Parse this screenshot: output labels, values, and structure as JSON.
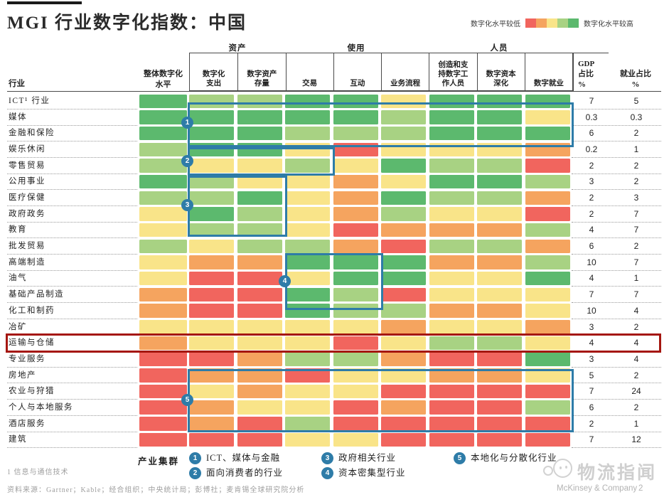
{
  "title": "MGI 行业数字化指数：中国",
  "color_legend": {
    "low_label": "数字化水平较低",
    "high_label": "数字化水平较高",
    "scale_colors": [
      "#f1655e",
      "#f5a45f",
      "#f9e489",
      "#a8d283",
      "#5cb96e"
    ]
  },
  "header": {
    "industry_label": "行业",
    "overall": "整体数字化\n水平",
    "groups": [
      "资产",
      "使用",
      "人员"
    ],
    "columns": [
      "数字化\n支出",
      "数字资产\n存量",
      "交易",
      "互动",
      "业务流程",
      "创造和支\n持数字工\n作人员",
      "数字资本\n深化",
      "数字就业"
    ],
    "gdp": "GDP\n占比\n%",
    "employment": "就业占比\n%"
  },
  "chart_data": {
    "type": "heatmap",
    "title": "MGI 行业数字化指数：中国",
    "row_header": "行业",
    "columns": [
      "整体数字化水平",
      "数字化支出",
      "数字资产存量",
      "交易",
      "互动",
      "业务流程",
      "创造和支持数字工作人员",
      "数字资本深化",
      "数字就业"
    ],
    "column_groups": [
      {
        "label": "资产",
        "columns": [
          "数字化支出",
          "数字资产存量"
        ]
      },
      {
        "label": "使用",
        "columns": [
          "交易",
          "互动",
          "业务流程"
        ]
      },
      {
        "label": "人员",
        "columns": [
          "创造和支持数字工作人员",
          "数字资本深化",
          "数字就业"
        ]
      }
    ],
    "value_columns": [
      "GDP占比%",
      "就业占比%"
    ],
    "scale": {
      "levels": [
        1,
        2,
        3,
        4,
        5
      ],
      "meaning": "1=数字化水平较低(红色) 到 5=数字化水平较高(绿色)"
    },
    "rows": [
      {
        "industry": "ICT¹ 行业",
        "levels": [
          5,
          4,
          4,
          5,
          5,
          3,
          5,
          5,
          5
        ],
        "gdp": "7",
        "employment": "5"
      },
      {
        "industry": "媒体",
        "levels": [
          5,
          5,
          5,
          5,
          5,
          4,
          5,
          5,
          3
        ],
        "gdp": "0.3",
        "employment": "0.3"
      },
      {
        "industry": "金融和保险",
        "levels": [
          5,
          5,
          5,
          4,
          4,
          4,
          5,
          5,
          5
        ],
        "gdp": "6",
        "employment": "2"
      },
      {
        "industry": "娱乐休闲",
        "levels": [
          4,
          5,
          5,
          3,
          1,
          3,
          3,
          3,
          2
        ],
        "gdp": "0.2",
        "employment": "1"
      },
      {
        "industry": "零售贸易",
        "levels": [
          4,
          3,
          3,
          4,
          3,
          5,
          4,
          4,
          1
        ],
        "gdp": "2",
        "employment": "2"
      },
      {
        "industry": "公用事业",
        "levels": [
          5,
          4,
          3,
          3,
          2,
          3,
          5,
          5,
          4
        ],
        "gdp": "3",
        "employment": "2"
      },
      {
        "industry": "医疗保健",
        "levels": [
          4,
          4,
          5,
          3,
          2,
          5,
          4,
          4,
          2
        ],
        "gdp": "2",
        "employment": "3"
      },
      {
        "industry": "政府政务",
        "levels": [
          3,
          5,
          4,
          3,
          2,
          4,
          3,
          3,
          1
        ],
        "gdp": "2",
        "employment": "7"
      },
      {
        "industry": "教育",
        "levels": [
          3,
          4,
          4,
          3,
          1,
          2,
          2,
          2,
          4
        ],
        "gdp": "4",
        "employment": "7"
      },
      {
        "industry": "批发贸易",
        "levels": [
          4,
          3,
          4,
          4,
          2,
          1,
          4,
          4,
          2
        ],
        "gdp": "6",
        "employment": "2"
      },
      {
        "industry": "高端制造",
        "levels": [
          3,
          2,
          2,
          5,
          5,
          5,
          2,
          2,
          4
        ],
        "gdp": "10",
        "employment": "7"
      },
      {
        "industry": "油气",
        "levels": [
          3,
          1,
          1,
          3,
          5,
          5,
          3,
          3,
          5
        ],
        "gdp": "4",
        "employment": "1"
      },
      {
        "industry": "基础产品制造",
        "levels": [
          2,
          1,
          1,
          5,
          4,
          1,
          3,
          3,
          3
        ],
        "gdp": "7",
        "employment": "7"
      },
      {
        "industry": "化工和制药",
        "levels": [
          2,
          1,
          1,
          5,
          4,
          4,
          2,
          2,
          3
        ],
        "gdp": "10",
        "employment": "4"
      },
      {
        "industry": "冶矿",
        "levels": [
          3,
          3,
          3,
          3,
          3,
          2,
          3,
          3,
          2
        ],
        "gdp": "3",
        "employment": "2"
      },
      {
        "industry": "运输与仓储",
        "levels": [
          2,
          3,
          3,
          3,
          1,
          3,
          4,
          4,
          3
        ],
        "gdp": "4",
        "employment": "4",
        "highlighted": true
      },
      {
        "industry": "专业服务",
        "levels": [
          1,
          1,
          2,
          4,
          4,
          2,
          1,
          1,
          5
        ],
        "gdp": "3",
        "employment": "4"
      },
      {
        "industry": "房地产",
        "levels": [
          1,
          2,
          2,
          1,
          3,
          3,
          2,
          2,
          3
        ],
        "gdp": "5",
        "employment": "2"
      },
      {
        "industry": "农业与狩猎",
        "levels": [
          1,
          3,
          2,
          3,
          3,
          1,
          1,
          1,
          1
        ],
        "gdp": "7",
        "employment": "24"
      },
      {
        "industry": "个人与本地服务",
        "levels": [
          1,
          2,
          3,
          3,
          1,
          2,
          1,
          1,
          4
        ],
        "gdp": "6",
        "employment": "2"
      },
      {
        "industry": "酒店服务",
        "levels": [
          1,
          2,
          1,
          4,
          1,
          1,
          1,
          1,
          1
        ],
        "gdp": "2",
        "employment": "1"
      },
      {
        "industry": "建筑",
        "levels": [
          1,
          1,
          1,
          3,
          3,
          1,
          1,
          1,
          1
        ],
        "gdp": "7",
        "employment": "12"
      }
    ]
  },
  "clusters": {
    "caption": "产业集群",
    "items": [
      {
        "num": "1",
        "label": "ICT、媒体与金融"
      },
      {
        "num": "2",
        "label": "面向消费者的行业"
      },
      {
        "num": "3",
        "label": "政府相关行业"
      },
      {
        "num": "4",
        "label": "资本密集型行业"
      },
      {
        "num": "5",
        "label": "本地化与分散化行业"
      }
    ]
  },
  "footnotes": [
    "1 信息与通信技术",
    "资料来源：Gartner；Kable；经合组织；中央统计局；彭博社；麦肯锡全球研究院分析"
  ],
  "footer": {
    "brand": "McKinsey & Company",
    "page": "2",
    "watermark": "物流指闻"
  }
}
